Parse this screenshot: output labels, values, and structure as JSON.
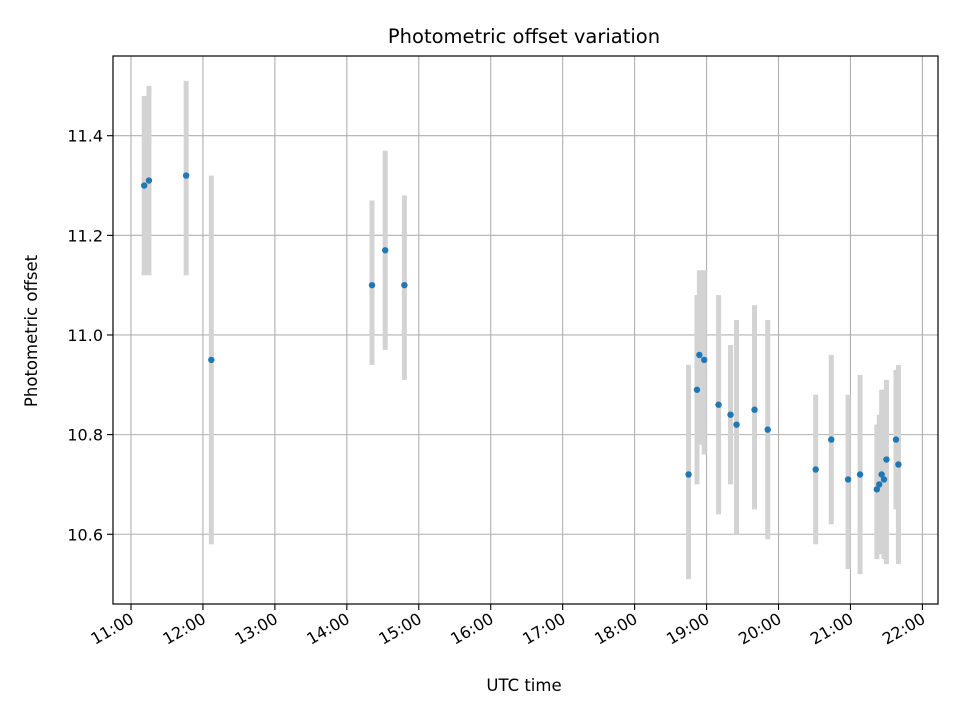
{
  "chart_data": {
    "type": "scatter",
    "title": "Photometric offset variation",
    "xlabel": "UTC time",
    "ylabel": "Photometric offset",
    "x_ticks": [
      "11:00",
      "12:00",
      "13:00",
      "14:00",
      "15:00",
      "16:00",
      "17:00",
      "18:00",
      "19:00",
      "20:00",
      "21:00",
      "22:00"
    ],
    "y_ticks": [
      "10.6",
      "10.8",
      "11.0",
      "11.2",
      "11.4"
    ],
    "xlim": [
      "10:45",
      "22:13"
    ],
    "ylim": [
      10.46,
      11.56
    ],
    "grid": true,
    "marker_color": "#1f77b4",
    "errorbar_color": "#d3d3d3",
    "points": [
      {
        "x": "11:11",
        "y": 11.3,
        "ylow": 11.12,
        "yhigh": 11.48
      },
      {
        "x": "11:15",
        "y": 11.31,
        "ylow": 11.12,
        "yhigh": 11.5
      },
      {
        "x": "11:46",
        "y": 11.32,
        "ylow": 11.12,
        "yhigh": 11.51
      },
      {
        "x": "12:07",
        "y": 10.95,
        "ylow": 10.58,
        "yhigh": 11.32
      },
      {
        "x": "14:21",
        "y": 11.1,
        "ylow": 10.94,
        "yhigh": 11.27
      },
      {
        "x": "14:32",
        "y": 11.17,
        "ylow": 10.97,
        "yhigh": 11.37
      },
      {
        "x": "14:48",
        "y": 11.1,
        "ylow": 10.91,
        "yhigh": 11.28
      },
      {
        "x": "18:45",
        "y": 10.72,
        "ylow": 10.51,
        "yhigh": 10.94
      },
      {
        "x": "18:52",
        "y": 10.89,
        "ylow": 10.7,
        "yhigh": 11.08
      },
      {
        "x": "18:54",
        "y": 10.96,
        "ylow": 10.78,
        "yhigh": 11.13
      },
      {
        "x": "18:58",
        "y": 10.95,
        "ylow": 10.76,
        "yhigh": 11.13
      },
      {
        "x": "19:10",
        "y": 10.86,
        "ylow": 10.64,
        "yhigh": 11.08
      },
      {
        "x": "19:20",
        "y": 10.84,
        "ylow": 10.7,
        "yhigh": 10.98
      },
      {
        "x": "19:25",
        "y": 10.82,
        "ylow": 10.6,
        "yhigh": 11.03
      },
      {
        "x": "19:40",
        "y": 10.85,
        "ylow": 10.65,
        "yhigh": 11.06
      },
      {
        "x": "19:51",
        "y": 10.81,
        "ylow": 10.59,
        "yhigh": 11.03
      },
      {
        "x": "20:31",
        "y": 10.73,
        "ylow": 10.58,
        "yhigh": 10.88
      },
      {
        "x": "20:44",
        "y": 10.79,
        "ylow": 10.62,
        "yhigh": 10.96
      },
      {
        "x": "20:58",
        "y": 10.71,
        "ylow": 10.53,
        "yhigh": 10.88
      },
      {
        "x": "21:08",
        "y": 10.72,
        "ylow": 10.52,
        "yhigh": 10.92
      },
      {
        "x": "21:22",
        "y": 10.69,
        "ylow": 10.55,
        "yhigh": 10.82
      },
      {
        "x": "21:24",
        "y": 10.7,
        "ylow": 10.56,
        "yhigh": 10.84
      },
      {
        "x": "21:26",
        "y": 10.72,
        "ylow": 10.56,
        "yhigh": 10.89
      },
      {
        "x": "21:28",
        "y": 10.71,
        "ylow": 10.55,
        "yhigh": 10.87
      },
      {
        "x": "21:30",
        "y": 10.75,
        "ylow": 10.54,
        "yhigh": 10.91
      },
      {
        "x": "21:38",
        "y": 10.79,
        "ylow": 10.65,
        "yhigh": 10.93
      },
      {
        "x": "21:40",
        "y": 10.74,
        "ylow": 10.54,
        "yhigh": 10.94
      }
    ]
  }
}
